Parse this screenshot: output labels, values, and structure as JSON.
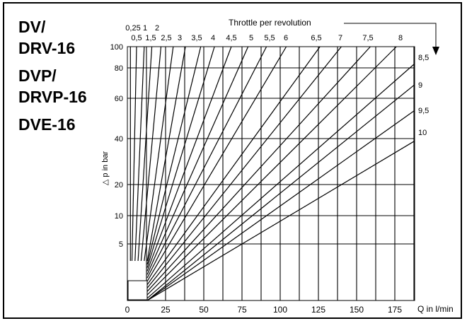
{
  "models": [
    "DV/",
    "DRV-16",
    "DVP/",
    "DRVP-16",
    "DVE-16"
  ],
  "chart_data": {
    "type": "line",
    "title": "",
    "xlabel": "Q in l/min",
    "ylabel": "△ p in bar",
    "annotation": "Throttle per revolution",
    "xlim": [
      0,
      190
    ],
    "ylim": [
      0,
      100
    ],
    "x_ticks": [
      0,
      25,
      50,
      75,
      100,
      125,
      150,
      175
    ],
    "y_ticks": [
      5,
      10,
      20,
      40,
      60,
      80,
      100
    ],
    "grid": true,
    "series": [
      {
        "name": "0,25",
        "points": [
          [
            2,
            3.5
          ],
          [
            2,
            100
          ]
        ]
      },
      {
        "name": "0,5",
        "points": [
          [
            3,
            3.5
          ],
          [
            6,
            100
          ]
        ]
      },
      {
        "name": "1",
        "points": [
          [
            5,
            3.5
          ],
          [
            11,
            100
          ]
        ]
      },
      {
        "name": "1,5",
        "points": [
          [
            7,
            3.5
          ],
          [
            16,
            100
          ]
        ]
      },
      {
        "name": "2",
        "points": [
          [
            9,
            3.5
          ],
          [
            22,
            100
          ]
        ]
      },
      {
        "name": "2,5",
        "points": [
          [
            11,
            3.5
          ],
          [
            30,
            100
          ]
        ]
      },
      {
        "name": "3",
        "points": [
          [
            13,
            3.5
          ],
          [
            38,
            100
          ]
        ]
      },
      {
        "name": "3,5",
        "points": [
          [
            13,
            3.2
          ],
          [
            48,
            100
          ]
        ]
      },
      {
        "name": "4",
        "points": [
          [
            13,
            2.9
          ],
          [
            57,
            100
          ]
        ]
      },
      {
        "name": "4,5",
        "points": [
          [
            13,
            2.6
          ],
          [
            68,
            100
          ]
        ]
      },
      {
        "name": "5",
        "points": [
          [
            13,
            2.3
          ],
          [
            79,
            100
          ]
        ]
      },
      {
        "name": "5,5",
        "points": [
          [
            13,
            2.0
          ],
          [
            91,
            100
          ]
        ]
      },
      {
        "name": "6",
        "points": [
          [
            13,
            1.7
          ],
          [
            104,
            100
          ]
        ]
      },
      {
        "name": "6,5",
        "points": [
          [
            13,
            1.4
          ],
          [
            126,
            100
          ]
        ]
      },
      {
        "name": "7",
        "points": [
          [
            13,
            1.1
          ],
          [
            140,
            100
          ]
        ]
      },
      {
        "name": "7,5",
        "points": [
          [
            13,
            0.8
          ],
          [
            159,
            100
          ]
        ]
      },
      {
        "name": "8",
        "points": [
          [
            13,
            0.5
          ],
          [
            176,
            100
          ]
        ]
      },
      {
        "name": "8,5",
        "points": [
          [
            13,
            0.2
          ],
          [
            188,
            84
          ]
        ]
      },
      {
        "name": "9",
        "points": [
          [
            13,
            0
          ],
          [
            188,
            69
          ]
        ]
      },
      {
        "name": "9,5",
        "points": [
          [
            13,
            0
          ],
          [
            188,
            54
          ]
        ]
      },
      {
        "name": "10",
        "points": [
          [
            13,
            0
          ],
          [
            188,
            39
          ]
        ]
      }
    ]
  }
}
